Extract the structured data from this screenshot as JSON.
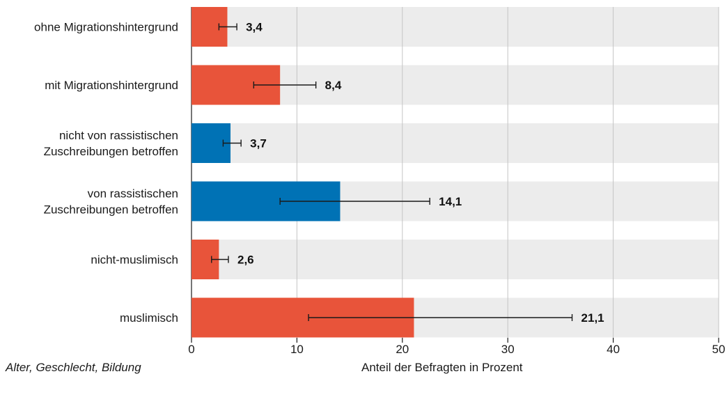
{
  "chart_data": {
    "type": "bar",
    "orientation": "horizontal",
    "categories": [
      [
        "ohne Migrationshintergrund"
      ],
      [
        "mit Migrationshintergrund"
      ],
      [
        "nicht von rassistischen",
        "Zuschreibungen betroffen"
      ],
      [
        "von rassistischen",
        "Zuschreibungen betroffen"
      ],
      [
        "nicht-muslimisch"
      ],
      [
        "muslimisch"
      ]
    ],
    "values": [
      3.4,
      8.4,
      3.7,
      14.1,
      2.6,
      21.1
    ],
    "value_labels": [
      "3,4",
      "8,4",
      "3,7",
      "14,1",
      "2,6",
      "21,1"
    ],
    "error_low": [
      2.6,
      5.9,
      3.0,
      8.4,
      1.9,
      11.1
    ],
    "error_high": [
      4.3,
      11.8,
      4.7,
      22.6,
      3.5,
      36.1
    ],
    "bar_colors": [
      "#e8543a",
      "#e8543a",
      "#0072b5",
      "#0072b5",
      "#e8543a",
      "#e8543a"
    ],
    "background_band_color": "#ececec",
    "xlim": [
      0,
      50
    ],
    "xticks": [
      0,
      10,
      20,
      30,
      40,
      50
    ],
    "xlabel": "Anteil der Befragten in Prozent",
    "grid": true
  },
  "footnote": "Alter, Geschlecht, Bildung"
}
